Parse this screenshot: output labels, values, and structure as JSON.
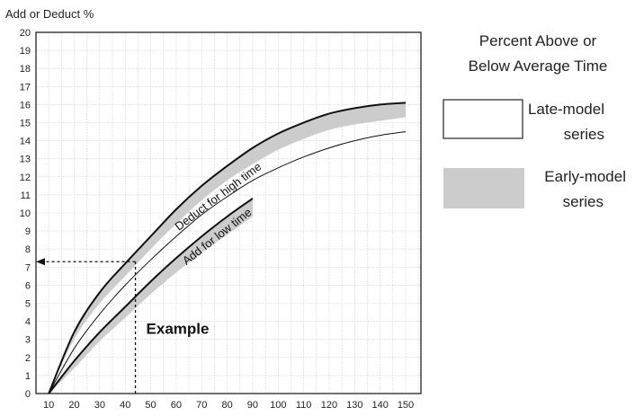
{
  "chart_data": {
    "type": "line",
    "ylabel": "Add or Deduct %",
    "x_ticks": [
      10,
      20,
      30,
      40,
      50,
      60,
      70,
      80,
      90,
      100,
      110,
      120,
      130,
      140,
      150
    ],
    "y_ticks": [
      0,
      1,
      2,
      3,
      4,
      5,
      6,
      7,
      8,
      9,
      10,
      11,
      12,
      13,
      14,
      15,
      16,
      17,
      18,
      19,
      20
    ],
    "xlim": [
      5,
      156
    ],
    "ylim": [
      0,
      20
    ],
    "grid": true,
    "bands": [
      {
        "key": "high",
        "color": "#cccccc",
        "x": [
          10,
          20,
          30,
          40,
          50,
          60,
          70,
          80,
          90,
          100,
          110,
          120,
          130,
          140,
          150
        ],
        "upper": [
          0,
          3.4,
          5.6,
          7.2,
          8.7,
          10.2,
          11.5,
          12.6,
          13.6,
          14.4,
          15.0,
          15.5,
          15.8,
          16.0,
          16.1
        ],
        "lower": [
          0,
          3.0,
          5.0,
          6.5,
          8.0,
          9.4,
          10.7,
          11.8,
          12.7,
          13.5,
          14.1,
          14.6,
          14.9,
          15.1,
          15.3
        ]
      },
      {
        "key": "low",
        "color": "#cccccc",
        "x": [
          10,
          20,
          30,
          40,
          50,
          60,
          70,
          80,
          90
        ],
        "upper": [
          0,
          1.8,
          3.4,
          4.8,
          6.2,
          7.5,
          8.7,
          9.8,
          10.8
        ],
        "lower": [
          0,
          1.4,
          2.9,
          4.2,
          5.5,
          6.7,
          7.8,
          8.8,
          9.8
        ]
      }
    ],
    "late_model_line": {
      "x": [
        10,
        20,
        30,
        40,
        50,
        60,
        70,
        80,
        90,
        100,
        110,
        120,
        130,
        140,
        150
      ],
      "y": [
        0,
        2.5,
        4.4,
        6.0,
        7.4,
        8.7,
        9.9,
        10.9,
        11.8,
        12.5,
        13.1,
        13.6,
        14.0,
        14.3,
        14.5
      ]
    },
    "curve_labels": {
      "high": "Deduct for high time",
      "low": "Add for low time"
    },
    "example": {
      "label": "Example",
      "x": 44,
      "y": 7.3
    },
    "legend": {
      "title_line1": "Percent Above or",
      "title_line2": "Below Average Time",
      "items": [
        {
          "line1": "Late-model",
          "line2": "series",
          "fill": "#ffffff",
          "stroke": "#222222"
        },
        {
          "line1": "Early-model",
          "line2": "series",
          "fill": "#cccccc",
          "stroke": "none"
        }
      ]
    }
  }
}
